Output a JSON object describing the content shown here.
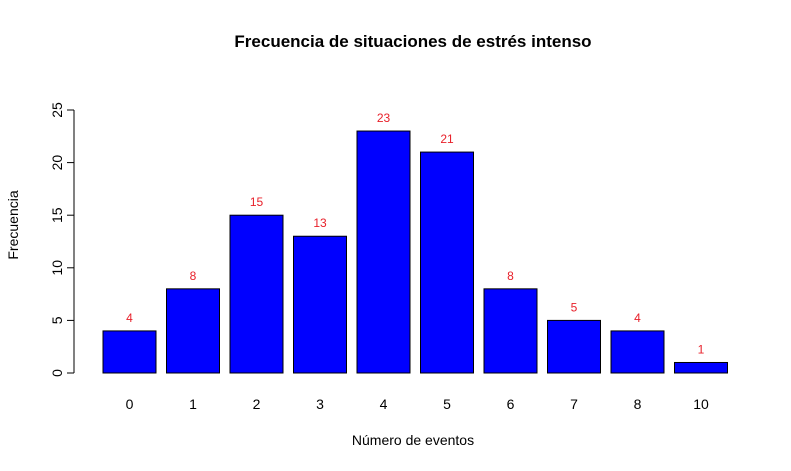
{
  "chart_data": {
    "type": "bar",
    "title": "Frecuencia de situaciones de estrés intenso",
    "xlabel": "Número de eventos",
    "ylabel": "Frecuencia",
    "categories": [
      "0",
      "1",
      "2",
      "3",
      "4",
      "5",
      "6",
      "7",
      "8",
      "10"
    ],
    "values": [
      4,
      8,
      15,
      13,
      23,
      21,
      8,
      5,
      4,
      1
    ],
    "data_labels": [
      "4",
      "8",
      "15",
      "13",
      "23",
      "21",
      "8",
      "5",
      "4",
      "1"
    ],
    "ylim": [
      0,
      25
    ],
    "yticks": [
      "0",
      "5",
      "10",
      "15",
      "20",
      "25"
    ],
    "grid": false,
    "legend": "none",
    "colors": {
      "bar_fill": "#0000ff",
      "bar_stroke": "#000000",
      "data_label": "#e8202a"
    }
  }
}
